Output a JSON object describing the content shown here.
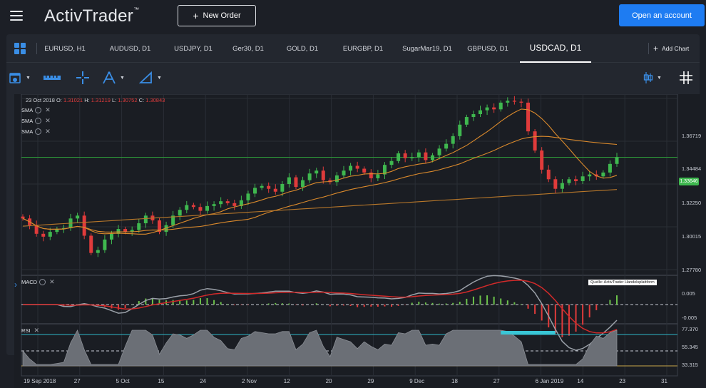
{
  "app": {
    "logo": "ActivTrader",
    "logo_tm": "™"
  },
  "header": {
    "new_order": "New Order",
    "open_account": "Open an account"
  },
  "tabs": [
    {
      "label": "EURUSD, H1"
    },
    {
      "label": "AUDUSD, D1"
    },
    {
      "label": "USDJPY, D1"
    },
    {
      "label": "Ger30, D1"
    },
    {
      "label": "GOLD, D1"
    },
    {
      "label": "EURGBP, D1"
    },
    {
      "label": "SugarMar19, D1"
    },
    {
      "label": "GBPUSD, D1"
    },
    {
      "label": "USDCAD, D1"
    }
  ],
  "add_chart": "Add Chart",
  "toolbar_icons": [
    "calendar-icon",
    "ruler-icon",
    "crosshair-icon",
    "drawing-tool-icon",
    "shape-tool-icon",
    "candle-type-icon",
    "grid-icon"
  ],
  "ohlc": {
    "date": "23 Oct 2018",
    "o_label": "O:",
    "o": "1.31021",
    "h_label": "H:",
    "h": "1.31219",
    "l_label": "L:",
    "l": "1.30752",
    "c_label": "C:",
    "c": "1.30843"
  },
  "indicators": {
    "sma": [
      "SMA",
      "SMA",
      "SMA"
    ],
    "macd": "MACD",
    "rsi": "RSI"
  },
  "price_axis": [
    "1.36719",
    "1.34484",
    "1.32250",
    "1.30015",
    "1.27780"
  ],
  "current_price": "1.33646",
  "macd_axis": [
    "0.005",
    "-0.005"
  ],
  "rsi_axis": [
    "77.370",
    "55.345",
    "33.315"
  ],
  "source_note": "Quelle: ActivTrader Handelsplattform",
  "chart_data": {
    "type": "candlestick",
    "symbol": "USDCAD, D1",
    "x_ticks": [
      "19 Sep 2018",
      "27",
      "5 Oct",
      "15",
      "24",
      "2 Nov",
      "12",
      "20",
      "29",
      "9 Dec",
      "18",
      "27",
      "6 Jan 2019",
      "14",
      "23",
      "31"
    ],
    "ylim": [
      1.2778,
      1.3672
    ],
    "closes": [
      1.3045,
      1.301,
      1.2965,
      1.295,
      1.2975,
      1.299,
      1.2995,
      1.3045,
      1.306,
      1.2955,
      1.2865,
      1.288,
      1.2935,
      1.2965,
      1.299,
      1.2975,
      1.2985,
      1.302,
      1.306,
      1.3035,
      1.2975,
      1.301,
      1.306,
      1.309,
      1.3115,
      1.3105,
      1.3085,
      1.311,
      1.312,
      1.3135,
      1.3125,
      1.311,
      1.314,
      1.3175,
      1.3205,
      1.3215,
      1.32,
      1.3185,
      1.3225,
      1.326,
      1.321,
      1.3245,
      1.328,
      1.3295,
      1.3245,
      1.3235,
      1.327,
      1.3295,
      1.332,
      1.3305,
      1.3285,
      1.3255,
      1.3275,
      1.3325,
      1.3345,
      1.3385,
      1.336,
      1.3365,
      1.339,
      1.335,
      1.3375,
      1.341,
      1.3435,
      1.3475,
      1.3535,
      1.3575,
      1.359,
      1.361,
      1.3625,
      1.3615,
      1.365,
      1.366,
      1.3655,
      1.365,
      1.35,
      1.34,
      1.33,
      1.325,
      1.32,
      1.323,
      1.325,
      1.324,
      1.3265,
      1.3275,
      1.3265,
      1.3285,
      1.333,
      1.3364
    ],
    "sma_colors": [
      "#d9892c",
      "#d9892c",
      "#b9782a"
    ],
    "up_color": "#3fb84f",
    "down_color": "#e03b3b"
  }
}
